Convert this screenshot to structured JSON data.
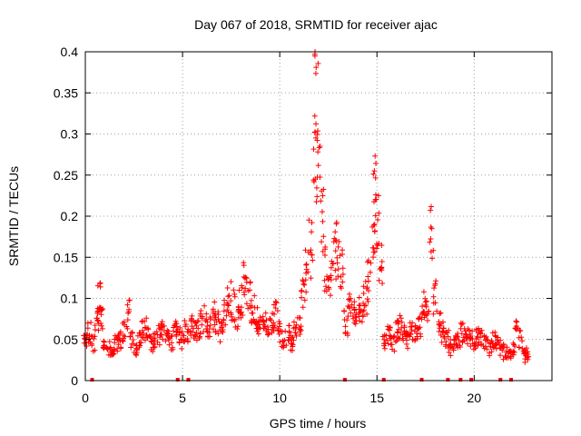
{
  "chart_data": {
    "type": "scatter",
    "title": "Day 067 of 2018, SRMTID for receiver ajac",
    "xlabel": "GPS time / hours",
    "ylabel": "SRMTID / TECUs",
    "xlim": [
      0,
      24
    ],
    "ylim": [
      0,
      0.4
    ],
    "xticks": [
      0,
      5,
      10,
      15,
      20
    ],
    "xtick_labels": [
      "0",
      "5",
      "10",
      "15",
      "20"
    ],
    "yticks": [
      0,
      0.05,
      0.1,
      0.15,
      0.2,
      0.25,
      0.3,
      0.35,
      0.4
    ],
    "ytick_labels": [
      "0",
      "0.05",
      "0.1",
      "0.15",
      "0.2",
      "0.25",
      "0.3",
      "0.35",
      "0.4"
    ],
    "grid": true,
    "marker": "plus",
    "color": "#ff0000",
    "series": [
      {
        "name": "SRMTID",
        "x": [
          0.0,
          0.2,
          0.4,
          0.6,
          0.7,
          0.8,
          1.0,
          1.2,
          1.4,
          1.6,
          1.8,
          2.0,
          2.2,
          2.4,
          2.6,
          2.8,
          3.0,
          3.2,
          3.4,
          3.6,
          3.8,
          4.0,
          4.2,
          4.4,
          4.6,
          4.8,
          5.0,
          5.2,
          5.4,
          5.6,
          5.8,
          6.0,
          6.2,
          6.4,
          6.6,
          6.8,
          7.0,
          7.2,
          7.4,
          7.6,
          7.8,
          8.0,
          8.2,
          8.4,
          8.6,
          8.8,
          9.0,
          9.2,
          9.4,
          9.6,
          9.8,
          10.0,
          10.2,
          10.4,
          10.6,
          10.8,
          11.0,
          11.2,
          11.4,
          11.6,
          11.8,
          11.9,
          12.0,
          12.2,
          12.4,
          12.6,
          12.8,
          13.0,
          13.2,
          13.4,
          13.6,
          13.8,
          14.0,
          14.2,
          14.4,
          14.6,
          14.8,
          14.9,
          15.0,
          15.2,
          15.4,
          15.6,
          15.8,
          16.0,
          16.2,
          16.4,
          16.6,
          16.8,
          17.0,
          17.2,
          17.4,
          17.6,
          17.8,
          18.0,
          18.2,
          18.4,
          18.6,
          18.8,
          19.0,
          19.2,
          19.4,
          19.6,
          19.8,
          20.0,
          20.2,
          20.4,
          20.6,
          20.8,
          21.0,
          21.2,
          21.4,
          21.6,
          21.8,
          22.0,
          22.2,
          22.4,
          22.6,
          22.7
        ],
        "y": [
          0.05,
          0.06,
          0.045,
          0.07,
          0.1,
          0.08,
          0.05,
          0.04,
          0.03,
          0.045,
          0.05,
          0.06,
          0.08,
          0.05,
          0.04,
          0.05,
          0.06,
          0.065,
          0.045,
          0.05,
          0.055,
          0.06,
          0.05,
          0.045,
          0.06,
          0.055,
          0.05,
          0.06,
          0.07,
          0.065,
          0.06,
          0.07,
          0.075,
          0.065,
          0.08,
          0.07,
          0.06,
          0.085,
          0.1,
          0.09,
          0.08,
          0.095,
          0.12,
          0.1,
          0.085,
          0.075,
          0.07,
          0.08,
          0.065,
          0.075,
          0.08,
          0.06,
          0.05,
          0.055,
          0.045,
          0.06,
          0.07,
          0.1,
          0.13,
          0.16,
          0.26,
          0.35,
          0.24,
          0.19,
          0.14,
          0.12,
          0.15,
          0.16,
          0.13,
          0.07,
          0.09,
          0.08,
          0.085,
          0.09,
          0.1,
          0.12,
          0.18,
          0.23,
          0.2,
          0.14,
          0.05,
          0.055,
          0.045,
          0.06,
          0.065,
          0.055,
          0.05,
          0.06,
          0.055,
          0.065,
          0.09,
          0.08,
          0.18,
          0.1,
          0.07,
          0.06,
          0.05,
          0.04,
          0.045,
          0.05,
          0.06,
          0.055,
          0.05,
          0.045,
          0.055,
          0.05,
          0.045,
          0.04,
          0.05,
          0.045,
          0.04,
          0.035,
          0.03,
          0.04,
          0.06,
          0.05,
          0.04,
          0.03
        ],
        "jitter_seed": 67,
        "points_per_value": 9
      }
    ],
    "bottom_markers_x": [
      0.35,
      4.75,
      5.3,
      13.35,
      15.35,
      17.3,
      18.65,
      19.3,
      19.85,
      21.35,
      21.9
    ]
  }
}
